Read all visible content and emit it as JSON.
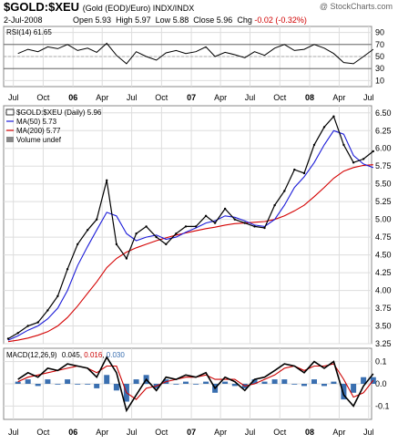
{
  "header": {
    "symbol": "$GOLD:$XEU",
    "description": "(Gold (EOD)/Euro)  INDX/INDX",
    "copyright": "@ StockCharts.com",
    "date": "2-Jul-2008",
    "open_label": "Open",
    "open": "5.93",
    "high_label": "High",
    "high": "5.97",
    "low_label": "Low",
    "low": "5.88",
    "close_label": "Close",
    "close": "5.96",
    "chg_label": "Chg",
    "chg": "-0.02 (-0.32%)"
  },
  "rsi_panel": {
    "legend": "RSI(14) 61.65",
    "levels": [
      70,
      30
    ],
    "ticks": [
      "90",
      "70",
      "50",
      "30",
      "10"
    ]
  },
  "price_panel": {
    "legend_symbol": "$GOLD:$XEU (Daily) 5.96",
    "legend_ma50": "MA(50) 5.73",
    "legend_ma200": "MA(200) 5.77",
    "legend_volume": "Volume undef",
    "ticks": [
      "6.50",
      "6.25",
      "6.00",
      "5.75",
      "5.50",
      "5.25",
      "5.00",
      "4.75",
      "4.50",
      "4.25",
      "4.00",
      "3.75",
      "3.50",
      "3.25"
    ]
  },
  "macd_panel": {
    "legend_label": "MACD(12,26,9)",
    "legend_macd": "0.045",
    "legend_signal": "0.016",
    "legend_hist": "0.030",
    "ticks": [
      "0.1",
      "0.0",
      "-0.1"
    ]
  },
  "x_axis": {
    "labels": [
      "Jul",
      "Oct",
      "06",
      "Apr",
      "Jul",
      "Oct",
      "07",
      "Apr",
      "Jul",
      "Oct",
      "08",
      "Apr",
      "Jul"
    ]
  },
  "colors": {
    "price": "#000000",
    "ma50": "#1b1bd8",
    "ma200": "#d40000",
    "macd": "#000000",
    "signal": "#cc0000",
    "hist": "#3a6fb0",
    "grid": "#dddddd",
    "chg": "#d00000"
  },
  "chart_data": [
    {
      "type": "line",
      "title": "RSI(14)",
      "ylim": [
        0,
        100
      ],
      "x": [
        "2005-07",
        "2005-08",
        "2005-09",
        "2005-10",
        "2005-11",
        "2005-12",
        "2006-01",
        "2006-02",
        "2006-03",
        "2006-04",
        "2006-05",
        "2006-06",
        "2006-07",
        "2006-08",
        "2006-09",
        "2006-10",
        "2006-11",
        "2006-12",
        "2007-01",
        "2007-02",
        "2007-03",
        "2007-04",
        "2007-05",
        "2007-06",
        "2007-07",
        "2007-08",
        "2007-09",
        "2007-10",
        "2007-11",
        "2007-12",
        "2008-01",
        "2008-02",
        "2008-03",
        "2008-04",
        "2008-05",
        "2008-06",
        "2008-07"
      ],
      "series": [
        {
          "name": "RSI(14)",
          "values": [
            55,
            62,
            58,
            66,
            63,
            70,
            60,
            64,
            57,
            72,
            52,
            38,
            58,
            50,
            44,
            56,
            60,
            55,
            58,
            66,
            50,
            57,
            53,
            48,
            58,
            52,
            64,
            70,
            60,
            62,
            70,
            64,
            55,
            40,
            38,
            50,
            62
          ]
        }
      ]
    },
    {
      "type": "line",
      "title": "$GOLD:$XEU (Daily)",
      "ylim": [
        3.25,
        6.6
      ],
      "x": [
        "2005-06",
        "2005-07",
        "2005-08",
        "2005-09",
        "2005-10",
        "2005-11",
        "2005-12",
        "2006-01",
        "2006-02",
        "2006-03",
        "2006-04",
        "2006-05",
        "2006-06",
        "2006-07",
        "2006-08",
        "2006-09",
        "2006-10",
        "2006-11",
        "2006-12",
        "2007-01",
        "2007-02",
        "2007-03",
        "2007-04",
        "2007-05",
        "2007-06",
        "2007-07",
        "2007-08",
        "2007-09",
        "2007-10",
        "2007-11",
        "2007-12",
        "2008-01",
        "2008-02",
        "2008-03",
        "2008-04",
        "2008-05",
        "2008-06",
        "2008-07"
      ],
      "series": [
        {
          "name": "$GOLD:$XEU",
          "values": [
            3.32,
            3.4,
            3.5,
            3.55,
            3.72,
            3.92,
            4.3,
            4.65,
            4.85,
            5.0,
            5.55,
            4.65,
            4.45,
            4.8,
            4.9,
            4.75,
            4.65,
            4.8,
            4.9,
            4.9,
            5.05,
            4.95,
            5.15,
            5.0,
            4.95,
            4.9,
            4.88,
            5.2,
            5.4,
            5.7,
            5.65,
            6.05,
            6.3,
            6.45,
            6.05,
            5.8,
            5.85,
            5.96
          ]
        },
        {
          "name": "MA(50)",
          "values": [
            3.3,
            3.36,
            3.44,
            3.5,
            3.6,
            3.75,
            4.0,
            4.35,
            4.62,
            4.85,
            5.1,
            5.05,
            4.8,
            4.7,
            4.75,
            4.78,
            4.72,
            4.75,
            4.82,
            4.88,
            4.95,
            4.98,
            5.05,
            5.03,
            4.98,
            4.92,
            4.9,
            5.0,
            5.2,
            5.45,
            5.6,
            5.8,
            6.05,
            6.25,
            6.2,
            5.9,
            5.78,
            5.73
          ]
        },
        {
          "name": "MA(200)",
          "values": [
            3.28,
            3.3,
            3.33,
            3.37,
            3.42,
            3.5,
            3.62,
            3.78,
            3.96,
            4.12,
            4.32,
            4.45,
            4.54,
            4.6,
            4.65,
            4.7,
            4.74,
            4.78,
            4.81,
            4.84,
            4.87,
            4.89,
            4.92,
            4.94,
            4.95,
            4.96,
            4.97,
            5.0,
            5.05,
            5.12,
            5.2,
            5.32,
            5.45,
            5.58,
            5.68,
            5.73,
            5.76,
            5.77
          ]
        }
      ]
    },
    {
      "type": "line",
      "title": "MACD(12,26,9)",
      "ylim": [
        -0.16,
        0.16
      ],
      "x": [
        "2005-07",
        "2005-08",
        "2005-09",
        "2005-10",
        "2005-11",
        "2005-12",
        "2006-01",
        "2006-02",
        "2006-03",
        "2006-04",
        "2006-05",
        "2006-06",
        "2006-07",
        "2006-08",
        "2006-09",
        "2006-10",
        "2006-11",
        "2006-12",
        "2007-01",
        "2007-02",
        "2007-03",
        "2007-04",
        "2007-05",
        "2007-06",
        "2007-07",
        "2007-08",
        "2007-09",
        "2007-10",
        "2007-11",
        "2007-12",
        "2008-01",
        "2008-02",
        "2008-03",
        "2008-04",
        "2008-05",
        "2008-06",
        "2008-07"
      ],
      "series": [
        {
          "name": "MACD",
          "values": [
            0.02,
            0.05,
            0.03,
            0.07,
            0.06,
            0.09,
            0.08,
            0.07,
            0.03,
            0.12,
            0.05,
            -0.12,
            -0.05,
            0.02,
            -0.03,
            0.03,
            0.02,
            0.04,
            0.03,
            0.05,
            -0.02,
            0.03,
            0.01,
            -0.03,
            0.02,
            0.03,
            0.06,
            0.09,
            0.08,
            0.05,
            0.1,
            0.07,
            0.1,
            -0.05,
            -0.1,
            -0.01,
            0.045
          ]
        },
        {
          "name": "Signal",
          "values": [
            0.01,
            0.03,
            0.04,
            0.05,
            0.06,
            0.07,
            0.08,
            0.07,
            0.05,
            0.08,
            0.08,
            -0.04,
            -0.07,
            -0.02,
            -0.01,
            0.01,
            0.02,
            0.03,
            0.03,
            0.04,
            0.02,
            0.02,
            0.02,
            -0.01,
            0.0,
            0.02,
            0.04,
            0.07,
            0.08,
            0.06,
            0.08,
            0.08,
            0.09,
            0.02,
            -0.06,
            -0.04,
            0.016
          ]
        },
        {
          "name": "Histogram",
          "values": [
            0.01,
            0.02,
            -0.01,
            0.02,
            0.0,
            0.02,
            0.0,
            0.0,
            -0.02,
            0.04,
            -0.03,
            -0.08,
            0.02,
            0.04,
            -0.02,
            0.02,
            0.0,
            0.01,
            0.0,
            0.01,
            -0.04,
            0.01,
            -0.01,
            -0.02,
            0.02,
            0.01,
            0.02,
            0.02,
            0.0,
            -0.01,
            0.02,
            -0.01,
            0.01,
            -0.07,
            -0.04,
            0.03,
            0.03
          ]
        }
      ]
    }
  ]
}
